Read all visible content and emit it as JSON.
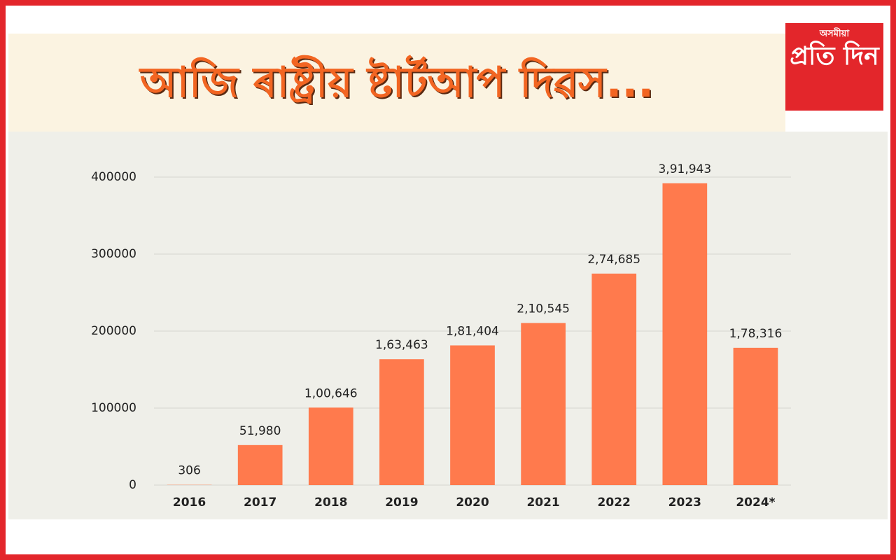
{
  "header": {
    "title": "আজি ৰাষ্ট্ৰীয় ষ্টাৰ্টআপ দিৱস...",
    "logo_top": "অসমীয়া",
    "logo_main": "প্ৰতি দিন"
  },
  "chart_data": {
    "type": "bar",
    "categories": [
      "2016",
      "2017",
      "2018",
      "2019",
      "2020",
      "2021",
      "2022",
      "2023",
      "2024*"
    ],
    "values": [
      306,
      51980,
      100646,
      163463,
      181404,
      210545,
      274685,
      391943,
      178316
    ],
    "value_labels": [
      "306",
      "51,980",
      "1,00,646",
      "1,63,463",
      "1,81,404",
      "2,10,545",
      "2,74,685",
      "3,91,943",
      "1,78,316"
    ],
    "color": "#ff7a4d",
    "ylim": [
      0,
      440000
    ],
    "yticks": [
      0,
      100000,
      200000,
      300000,
      400000
    ],
    "grid": true
  }
}
